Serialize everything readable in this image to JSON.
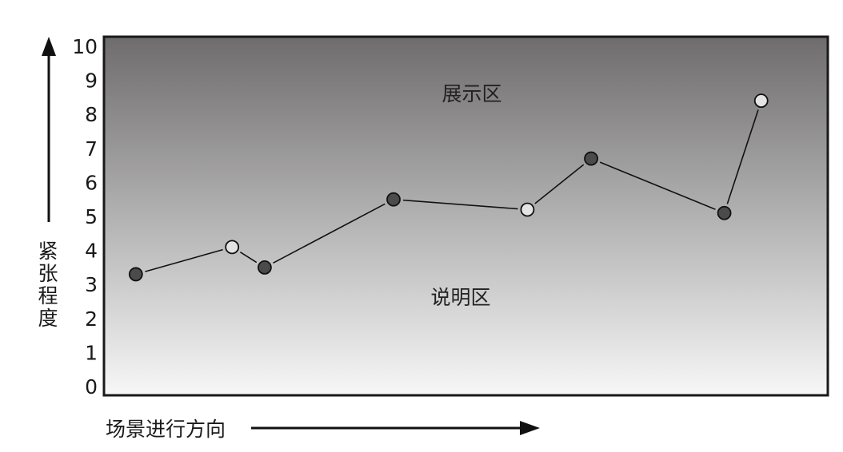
{
  "chart_data": {
    "type": "line",
    "ylim": [
      0,
      10
    ],
    "yticks": [
      "0",
      "1",
      "2",
      "3",
      "4",
      "5",
      "6",
      "7",
      "8",
      "9",
      "10"
    ],
    "ylabel": "紧张程度",
    "xlabel": "场景进行方向",
    "grid": false,
    "zones": {
      "top": "展示区",
      "bottom": "说明区"
    },
    "series": [
      {
        "values": [
          3.3,
          4.1,
          3.5,
          5.5,
          5.2,
          6.7,
          5.1,
          8.4
        ],
        "markers": [
          "filled",
          "hollow",
          "filled",
          "filled",
          "hollow",
          "filled",
          "filled",
          "hollow"
        ]
      }
    ]
  },
  "colors": {
    "plot_top": "#6e6c6d",
    "plot_bottom": "#f7f7f7",
    "frame": "#1a1a1a",
    "line": "#111111",
    "marker_filled": "#4b4b4b",
    "marker_hollow": "#e4e4e4"
  }
}
